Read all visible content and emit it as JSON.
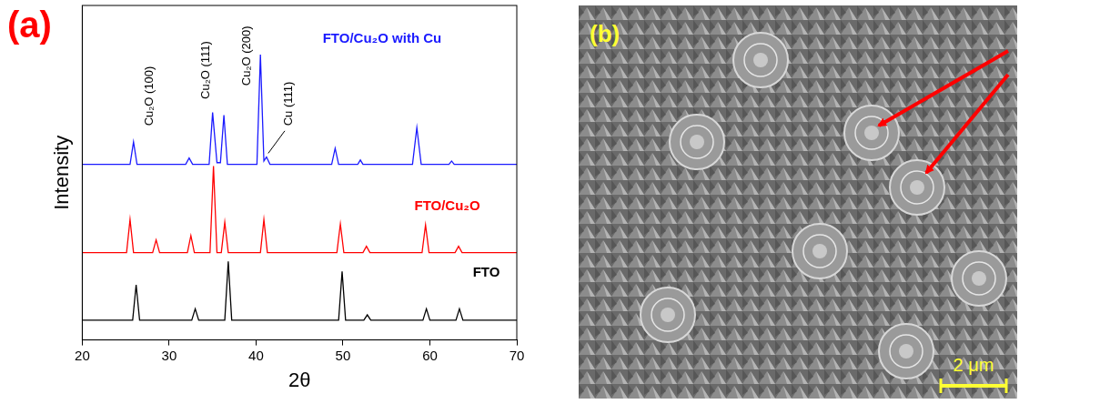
{
  "chart_data": {
    "type": "line",
    "panel_label": "(a)",
    "x_label": "2θ",
    "y_label": "Intensity",
    "xlim": [
      20,
      70
    ],
    "xticks": [
      20,
      30,
      40,
      50,
      60,
      70
    ],
    "ylim": [
      0,
      100
    ],
    "tick_labels": "x",
    "grid": false,
    "annotations": [
      "Cu₂O (100)",
      "Cu₂O (111)",
      "Cu₂O (200)",
      "Cu (111)"
    ],
    "series": [
      {
        "name": "FTO/Cu₂O with Cu",
        "color": "#1a1aff",
        "x": [
          20,
          25.5,
          25.9,
          26.3,
          31.9,
          32.3,
          32.7,
          34.6,
          35.0,
          35.5,
          35.9,
          36.3,
          36.7,
          40.1,
          40.5,
          40.9,
          41.2,
          41.6,
          48.7,
          49.1,
          49.5,
          51.7,
          52.0,
          52.3,
          58.0,
          58.5,
          59.0,
          62.2,
          62.5,
          62.8,
          70
        ],
        "values": [
          52.5,
          52.5,
          59.2,
          52.5,
          52.5,
          54.4,
          52.5,
          52.5,
          68.0,
          53.0,
          53.0,
          67.2,
          52.5,
          52.5,
          85.3,
          53.5,
          54.7,
          52.5,
          52.5,
          57.3,
          52.5,
          52.5,
          53.8,
          52.5,
          52.5,
          63.5,
          52.5,
          52.5,
          53.5,
          52.5,
          52.5
        ]
      },
      {
        "name": "FTO/Cu₂O",
        "color": "#ff0000",
        "x": [
          20,
          25.1,
          25.5,
          25.9,
          28.1,
          28.5,
          28.9,
          32.1,
          32.5,
          32.9,
          34.7,
          35.1,
          35.5,
          36.0,
          36.4,
          36.8,
          40.5,
          40.9,
          41.3,
          49.3,
          49.7,
          50.1,
          52.3,
          52.7,
          53.1,
          59.1,
          59.5,
          59.9,
          62.9,
          63.3,
          63.7,
          70
        ],
        "values": [
          26.1,
          26.1,
          36.0,
          26.1,
          26.1,
          29.9,
          26.1,
          26.1,
          31.2,
          26.1,
          26.1,
          52.0,
          26.1,
          26.1,
          35.2,
          26.1,
          26.1,
          36.0,
          26.1,
          26.1,
          34.7,
          26.1,
          26.1,
          28.0,
          26.1,
          26.1,
          34.4,
          26.1,
          26.1,
          28.0,
          26.1,
          26.1
        ]
      },
      {
        "name": "FTO",
        "color": "#000000",
        "x": [
          20,
          25.8,
          26.2,
          26.6,
          32.6,
          33.0,
          33.4,
          36.4,
          36.8,
          37.2,
          49.5,
          49.9,
          50.3,
          52.4,
          52.8,
          53.2,
          59.2,
          59.6,
          60.0,
          63.0,
          63.4,
          63.8,
          70
        ],
        "values": [
          5.9,
          5.9,
          16.5,
          5.9,
          5.9,
          9.3,
          5.9,
          5.9,
          23.5,
          5.9,
          5.9,
          20.5,
          5.9,
          5.9,
          7.5,
          5.9,
          5.9,
          9.3,
          5.9,
          5.9,
          9.3,
          5.9,
          5.9
        ]
      }
    ]
  },
  "panel_b": {
    "label": "(b)",
    "scale_bar": "2 μm"
  }
}
